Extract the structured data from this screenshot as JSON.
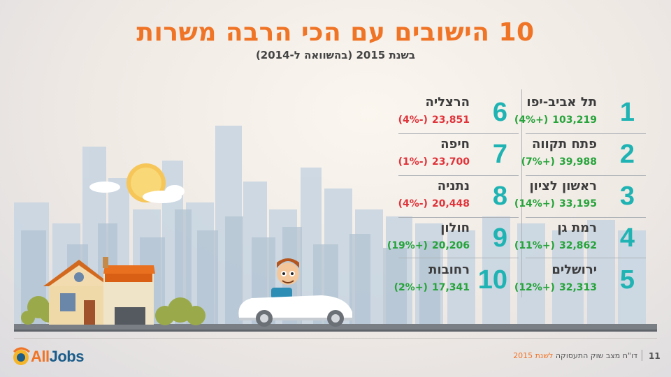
{
  "title": "10 הישובים עם הכי הרבה משרות",
  "subtitle": "בשנת 2015 (בהשוואה ל-2014)",
  "items": [
    {
      "rank": "1",
      "city": "תל אביב-יפו",
      "value": "103,219",
      "change": "(+4%)",
      "positive": true
    },
    {
      "rank": "2",
      "city": "פתח תקווה",
      "value": "39,988",
      "change": "(+7%)",
      "positive": true
    },
    {
      "rank": "3",
      "city": "ראשון לציון",
      "value": "33,195",
      "change": "(+14%)",
      "positive": true
    },
    {
      "rank": "4",
      "city": "רמת גן",
      "value": "32,862",
      "change": "(+11%)",
      "positive": true
    },
    {
      "rank": "5",
      "city": "ירושלים",
      "value": "32,313",
      "change": "(+12%)",
      "positive": true
    },
    {
      "rank": "6",
      "city": "הרצליה",
      "value": "23,851",
      "change": "(-4%)",
      "positive": false
    },
    {
      "rank": "7",
      "city": "חיפה",
      "value": "23,700",
      "change": "(-1%)",
      "positive": false
    },
    {
      "rank": "8",
      "city": "נתניה",
      "value": "20,448",
      "change": "(-4%)",
      "positive": false
    },
    {
      "rank": "9",
      "city": "חולון",
      "value": "20,206",
      "change": "(+19%)",
      "positive": true
    },
    {
      "rank": "10",
      "city": "רחובות",
      "value": "17,341",
      "change": "(+2%)",
      "positive": true
    }
  ],
  "footer": {
    "logo_prefix": "All",
    "logo_suffix": "Jobs",
    "page_number": "11",
    "report_text": "דו\"ח מצב שוק התעסוקה",
    "report_year": "לשנת 2015"
  },
  "colors": {
    "title": "#f07426",
    "rank": "#1fb3b3",
    "positive": "#26a33a",
    "negative": "#e0333a"
  }
}
